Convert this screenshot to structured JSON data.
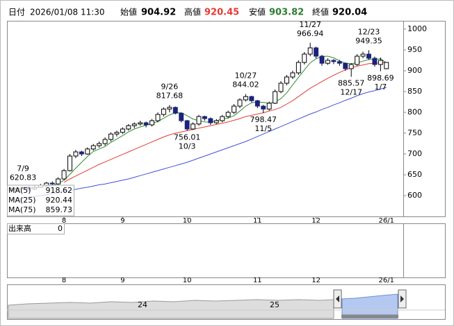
{
  "chart_data": {
    "type": "candlestick",
    "header": {
      "date_label": "日付",
      "datetime": "2026/01/08 11:30",
      "open_label": "始値",
      "high_label": "高値",
      "low_label": "安値",
      "close_label": "終値"
    },
    "categories": [
      null,
      null,
      null,
      null,
      null,
      null,
      null,
      null,
      null,
      "8",
      null,
      null,
      null,
      null,
      null,
      null,
      null,
      null,
      null,
      "9",
      null,
      null,
      null,
      null,
      null,
      null,
      null,
      null,
      null,
      null,
      "10",
      null,
      null,
      null,
      null,
      null,
      null,
      null,
      null,
      null,
      null,
      null,
      "11",
      null,
      null,
      null,
      null,
      null,
      null,
      null,
      null,
      null,
      "12",
      null,
      null,
      null,
      null,
      null,
      null,
      null,
      null,
      null,
      null,
      null,
      "26/1"
    ],
    "candles": [
      [
        612,
        620,
        608,
        615
      ],
      [
        615,
        621,
        612,
        618
      ],
      [
        618,
        620.83,
        614,
        620
      ],
      [
        620,
        623,
        612,
        616
      ],
      [
        616,
        624,
        613,
        620
      ],
      [
        620,
        628,
        618,
        625
      ],
      [
        625,
        633,
        622,
        630
      ],
      [
        630,
        634,
        624,
        628
      ],
      [
        628,
        644,
        626,
        640
      ],
      [
        640,
        664,
        638,
        660
      ],
      [
        660,
        700,
        658,
        695
      ],
      [
        695,
        710,
        690,
        705
      ],
      [
        705,
        708,
        695,
        700
      ],
      [
        700,
        716,
        698,
        712
      ],
      [
        712,
        724,
        708,
        720
      ],
      [
        720,
        730,
        715,
        725
      ],
      [
        725,
        740,
        720,
        735
      ],
      [
        735,
        752,
        730,
        748
      ],
      [
        748,
        756,
        742,
        752
      ],
      [
        752,
        764,
        748,
        760
      ],
      [
        760,
        772,
        756,
        768
      ],
      [
        768,
        776,
        762,
        772
      ],
      [
        772,
        780,
        768,
        775
      ],
      [
        775,
        778,
        764,
        770
      ],
      [
        770,
        784,
        766,
        780
      ],
      [
        780,
        800,
        776,
        795
      ],
      [
        795,
        812,
        790,
        808
      ],
      [
        808,
        817.68,
        800,
        812
      ],
      [
        812,
        814,
        795,
        798
      ],
      [
        798,
        800,
        776,
        780
      ],
      [
        780,
        782,
        756.01,
        760
      ],
      [
        760,
        776,
        758,
        772
      ],
      [
        772,
        794,
        768,
        790
      ],
      [
        790,
        792,
        780,
        785
      ],
      [
        785,
        788,
        770,
        775
      ],
      [
        775,
        784,
        772,
        780
      ],
      [
        780,
        794,
        776,
        790
      ],
      [
        790,
        804,
        786,
        800
      ],
      [
        800,
        820,
        796,
        815
      ],
      [
        815,
        834,
        810,
        830
      ],
      [
        830,
        844.02,
        826,
        838
      ],
      [
        838,
        840,
        824,
        828
      ],
      [
        828,
        830,
        810,
        815
      ],
      [
        815,
        818,
        798.47,
        808
      ],
      [
        808,
        826,
        804,
        822
      ],
      [
        822,
        855,
        820,
        850
      ],
      [
        850,
        875,
        846,
        870
      ],
      [
        870,
        890,
        865,
        885
      ],
      [
        885,
        900,
        880,
        895
      ],
      [
        895,
        925,
        890,
        920
      ],
      [
        920,
        945,
        915,
        940
      ],
      [
        940,
        966.94,
        935,
        955
      ],
      [
        955,
        958,
        930,
        935
      ],
      [
        935,
        938,
        912,
        918
      ],
      [
        918,
        930,
        914,
        925
      ],
      [
        925,
        928,
        916,
        922
      ],
      [
        922,
        926,
        912,
        918
      ],
      [
        918,
        920,
        900,
        905
      ],
      [
        905,
        918,
        885.57,
        915
      ],
      [
        915,
        940,
        912,
        935
      ],
      [
        935,
        946,
        930,
        940
      ],
      [
        940,
        949.35,
        926,
        930
      ],
      [
        930,
        934,
        910,
        915
      ],
      [
        915,
        932,
        898.69,
        925
      ],
      [
        904.92,
        920.45,
        903.82,
        920.04
      ]
    ],
    "up_color": "#ffffff",
    "down_color": "#1a237e",
    "series": [
      {
        "name": "MA(5)",
        "color": "#2e8b2e",
        "values": [
          614,
          616,
          618,
          618,
          618,
          620,
          622,
          624,
          629,
          637,
          651,
          666,
          680,
          694,
          706,
          712,
          718,
          728,
          736,
          744,
          753,
          760,
          765,
          769,
          773,
          778,
          786,
          794,
          799,
          799,
          792,
          784,
          780,
          777,
          776,
          780,
          784,
          786,
          792,
          803,
          815,
          823,
          825,
          824,
          822,
          825,
          833,
          847,
          866,
          884,
          902,
          919,
          929,
          934,
          935,
          931,
          924,
          918,
          917,
          919,
          923,
          927,
          927,
          929,
          918.62
        ]
      },
      {
        "name": "MA(25)",
        "color": "#e53935",
        "values": [
          null,
          null,
          null,
          null,
          null,
          null,
          null,
          null,
          null,
          632,
          640,
          647,
          654,
          661,
          668,
          675,
          681,
          687,
          693,
          699,
          705,
          711,
          717,
          723,
          729,
          735,
          741,
          746,
          750,
          753,
          756,
          759,
          762,
          765,
          768,
          771,
          774,
          777,
          781,
          785,
          790,
          793,
          796,
          799,
          803,
          807,
          812,
          820,
          828,
          838,
          848,
          858,
          866,
          874,
          882,
          889,
          896,
          902,
          907,
          911,
          914,
          917,
          918,
          919,
          920.44
        ]
      },
      {
        "name": "MA(75)",
        "color": "#3f51d8",
        "values": [
          590,
          592,
          594,
          596,
          598,
          600,
          602,
          605,
          607,
          610,
          612,
          615,
          618,
          620,
          623,
          626,
          628,
          631,
          634,
          637,
          640,
          644,
          648,
          652,
          656,
          660,
          664,
          668,
          672,
          676,
          680,
          685,
          690,
          695,
          700,
          705,
          710,
          715,
          720,
          725,
          730,
          736,
          742,
          748,
          754,
          760,
          766,
          772,
          778,
          784,
          790,
          796,
          801,
          807,
          812,
          818,
          823,
          829,
          834,
          840,
          845,
          849,
          852,
          856,
          859.73
        ]
      }
    ],
    "annotations": [
      {
        "date": "7/9",
        "value": 620.83
      },
      {
        "date": "9/26",
        "value": 817.68
      },
      {
        "date": "10/3",
        "value": 756.01
      },
      {
        "date": "10/27",
        "value": 844.02
      },
      {
        "date": "11/5",
        "value": 798.47
      },
      {
        "date": "11/27",
        "value": 966.94
      },
      {
        "date": "12/17",
        "value": 885.57
      },
      {
        "date": "12/23",
        "value": 949.35
      },
      {
        "date": "1/7",
        "value": 898.69
      }
    ],
    "ylim": [
      550,
      1020
    ],
    "yticks": [
      600,
      650,
      700,
      750,
      800,
      850,
      900,
      950,
      1000
    ],
    "volume": {
      "label": "出来高",
      "yticks": [
        0
      ]
    },
    "navigator": {
      "labels": [
        "24",
        "25"
      ]
    }
  }
}
